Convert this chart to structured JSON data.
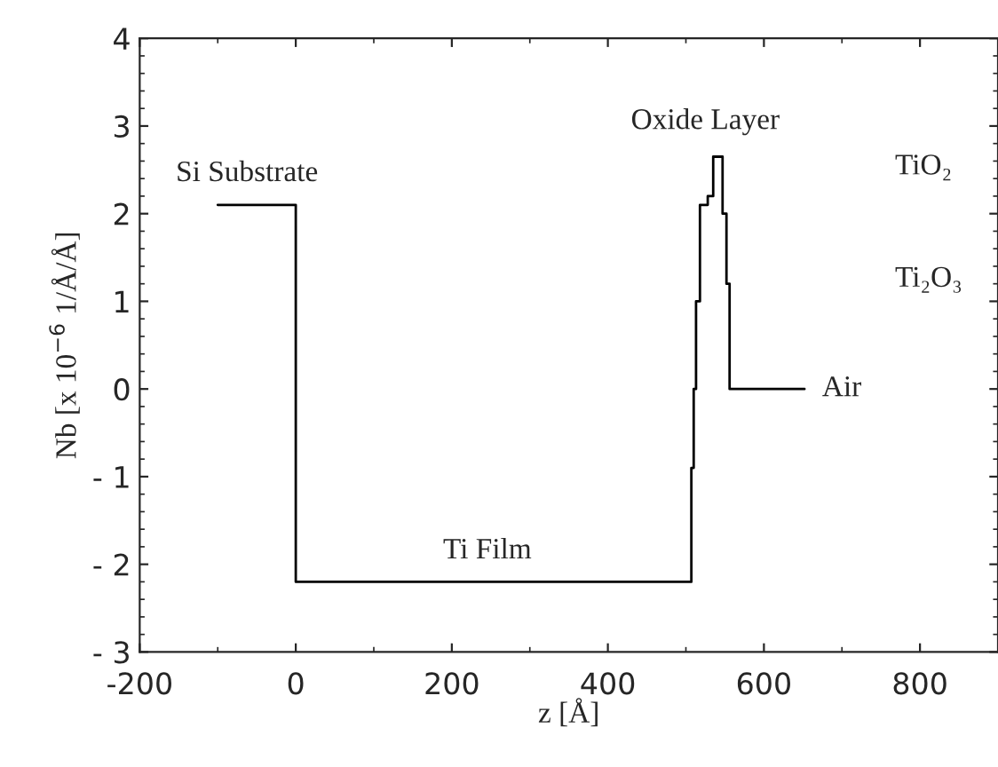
{
  "chart_data": {
    "type": "step",
    "x": [
      -100,
      0,
      507,
      510,
      513,
      518,
      528,
      535,
      547,
      552,
      556,
      652
    ],
    "values": [
      2.1,
      -2.2,
      -0.9,
      0,
      1.0,
      2.1,
      2.2,
      2.65,
      2.0,
      1.2,
      0,
      0
    ],
    "color": "#000000",
    "xlabel": "z [Å]",
    "ylabel": "Nb [x 10$^{−6}$ 1/Å/Å]",
    "xlim": [
      -200,
      900
    ],
    "xticks": [
      -200,
      0,
      200,
      400,
      600,
      800
    ],
    "ylim": [
      -3,
      4
    ],
    "yticks": [
      {
        "value": -3,
        "label": "- 3"
      },
      {
        "value": -2,
        "label": "- 2"
      },
      {
        "value": -1,
        "label": "- 1"
      },
      0,
      1,
      2,
      3,
      4
    ],
    "grid": false,
    "legend": false,
    "annotations": [
      "Si Substrate",
      "Ti Film",
      "Oxide Layer",
      "TiO₂",
      "Ti₂O₃",
      "Air"
    ]
  }
}
